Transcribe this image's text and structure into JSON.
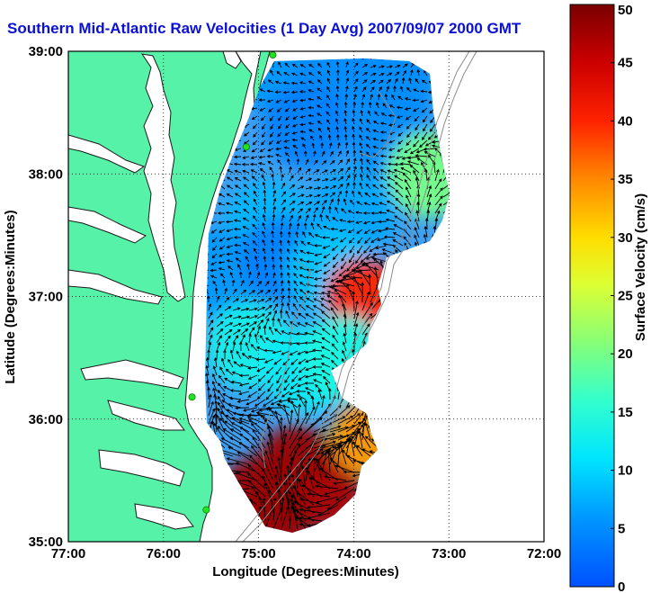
{
  "chart_data": {
    "type": "heatmap",
    "title": "Southern Mid-Atlantic Raw Velocities (1 Day Avg) 2007/09/07 2000 GMT",
    "xlabel": "Longitude (Degrees:Minutes)",
    "ylabel": "Latitude (Degrees:Minutes)",
    "xlim": [
      -77,
      -72
    ],
    "ylim": [
      35,
      39
    ],
    "x_ticks": [
      {
        "value": -77,
        "label": "77:00"
      },
      {
        "value": -76,
        "label": "76:00"
      },
      {
        "value": -75,
        "label": "75:00"
      },
      {
        "value": -74,
        "label": "74:00"
      },
      {
        "value": -73,
        "label": "73:00"
      },
      {
        "value": -72,
        "label": "72:00"
      }
    ],
    "y_ticks": [
      {
        "value": 35,
        "label": "35:00"
      },
      {
        "value": 36,
        "label": "36:00"
      },
      {
        "value": 37,
        "label": "37:00"
      },
      {
        "value": 38,
        "label": "38:00"
      },
      {
        "value": 39,
        "label": "39:00"
      }
    ],
    "grid": true,
    "colorbar": {
      "label": "Surface Velocity (cm/s)",
      "range": [
        0,
        50
      ],
      "ticks": [
        {
          "value": 0,
          "label": "0"
        },
        {
          "value": 5,
          "label": "5"
        },
        {
          "value": 10,
          "label": "10"
        },
        {
          "value": 15,
          "label": "15"
        },
        {
          "value": 20,
          "label": "20"
        },
        {
          "value": 25,
          "label": "25"
        },
        {
          "value": 30,
          "label": "30"
        },
        {
          "value": 35,
          "label": "35"
        },
        {
          "value": 40,
          "label": "40"
        },
        {
          "value": 45,
          "label": "45"
        },
        {
          "value": 50,
          "label": "50"
        }
      ]
    },
    "colors": {
      "land": "#55f2a8",
      "water": "#ffffff",
      "title": "#0a10d8",
      "coast": "#1a1a1a",
      "bathymetry": "#8c8c8c",
      "stations": "#22e022"
    },
    "station_markers": [
      {
        "lon": -74.85,
        "lat": 38.97
      },
      {
        "lon": -75.13,
        "lat": 38.22
      },
      {
        "lon": -75.7,
        "lat": 36.18
      },
      {
        "lon": -75.55,
        "lat": 35.26
      }
    ],
    "velocity_field": [
      {
        "lon": -74.8,
        "lat": 38.85,
        "speed": 6
      },
      {
        "lon": -74.2,
        "lat": 38.85,
        "speed": 5
      },
      {
        "lon": -73.6,
        "lat": 38.75,
        "speed": 5
      },
      {
        "lon": -74.5,
        "lat": 38.4,
        "speed": 4
      },
      {
        "lon": -73.6,
        "lat": 38.3,
        "speed": 5
      },
      {
        "lon": -73.2,
        "lat": 38.0,
        "speed": 20
      },
      {
        "lon": -74.9,
        "lat": 37.6,
        "speed": 8
      },
      {
        "lon": -74.0,
        "lat": 37.7,
        "speed": 7
      },
      {
        "lon": -75.4,
        "lat": 37.2,
        "speed": 6
      },
      {
        "lon": -74.75,
        "lat": 37.3,
        "speed": 4
      },
      {
        "lon": -74.25,
        "lat": 37.2,
        "speed": 9
      },
      {
        "lon": -73.9,
        "lat": 37.0,
        "speed": 40
      },
      {
        "lon": -75.1,
        "lat": 36.6,
        "speed": 13
      },
      {
        "lon": -74.5,
        "lat": 36.4,
        "speed": 12
      },
      {
        "lon": -74.1,
        "lat": 36.5,
        "speed": 14
      },
      {
        "lon": -74.6,
        "lat": 35.65,
        "speed": 48
      },
      {
        "lon": -75.0,
        "lat": 35.4,
        "speed": 48
      },
      {
        "lon": -74.3,
        "lat": 35.4,
        "speed": 47
      },
      {
        "lon": -74.85,
        "lat": 35.15,
        "speed": 48
      },
      {
        "lon": -73.85,
        "lat": 35.85,
        "speed": 34
      }
    ]
  }
}
